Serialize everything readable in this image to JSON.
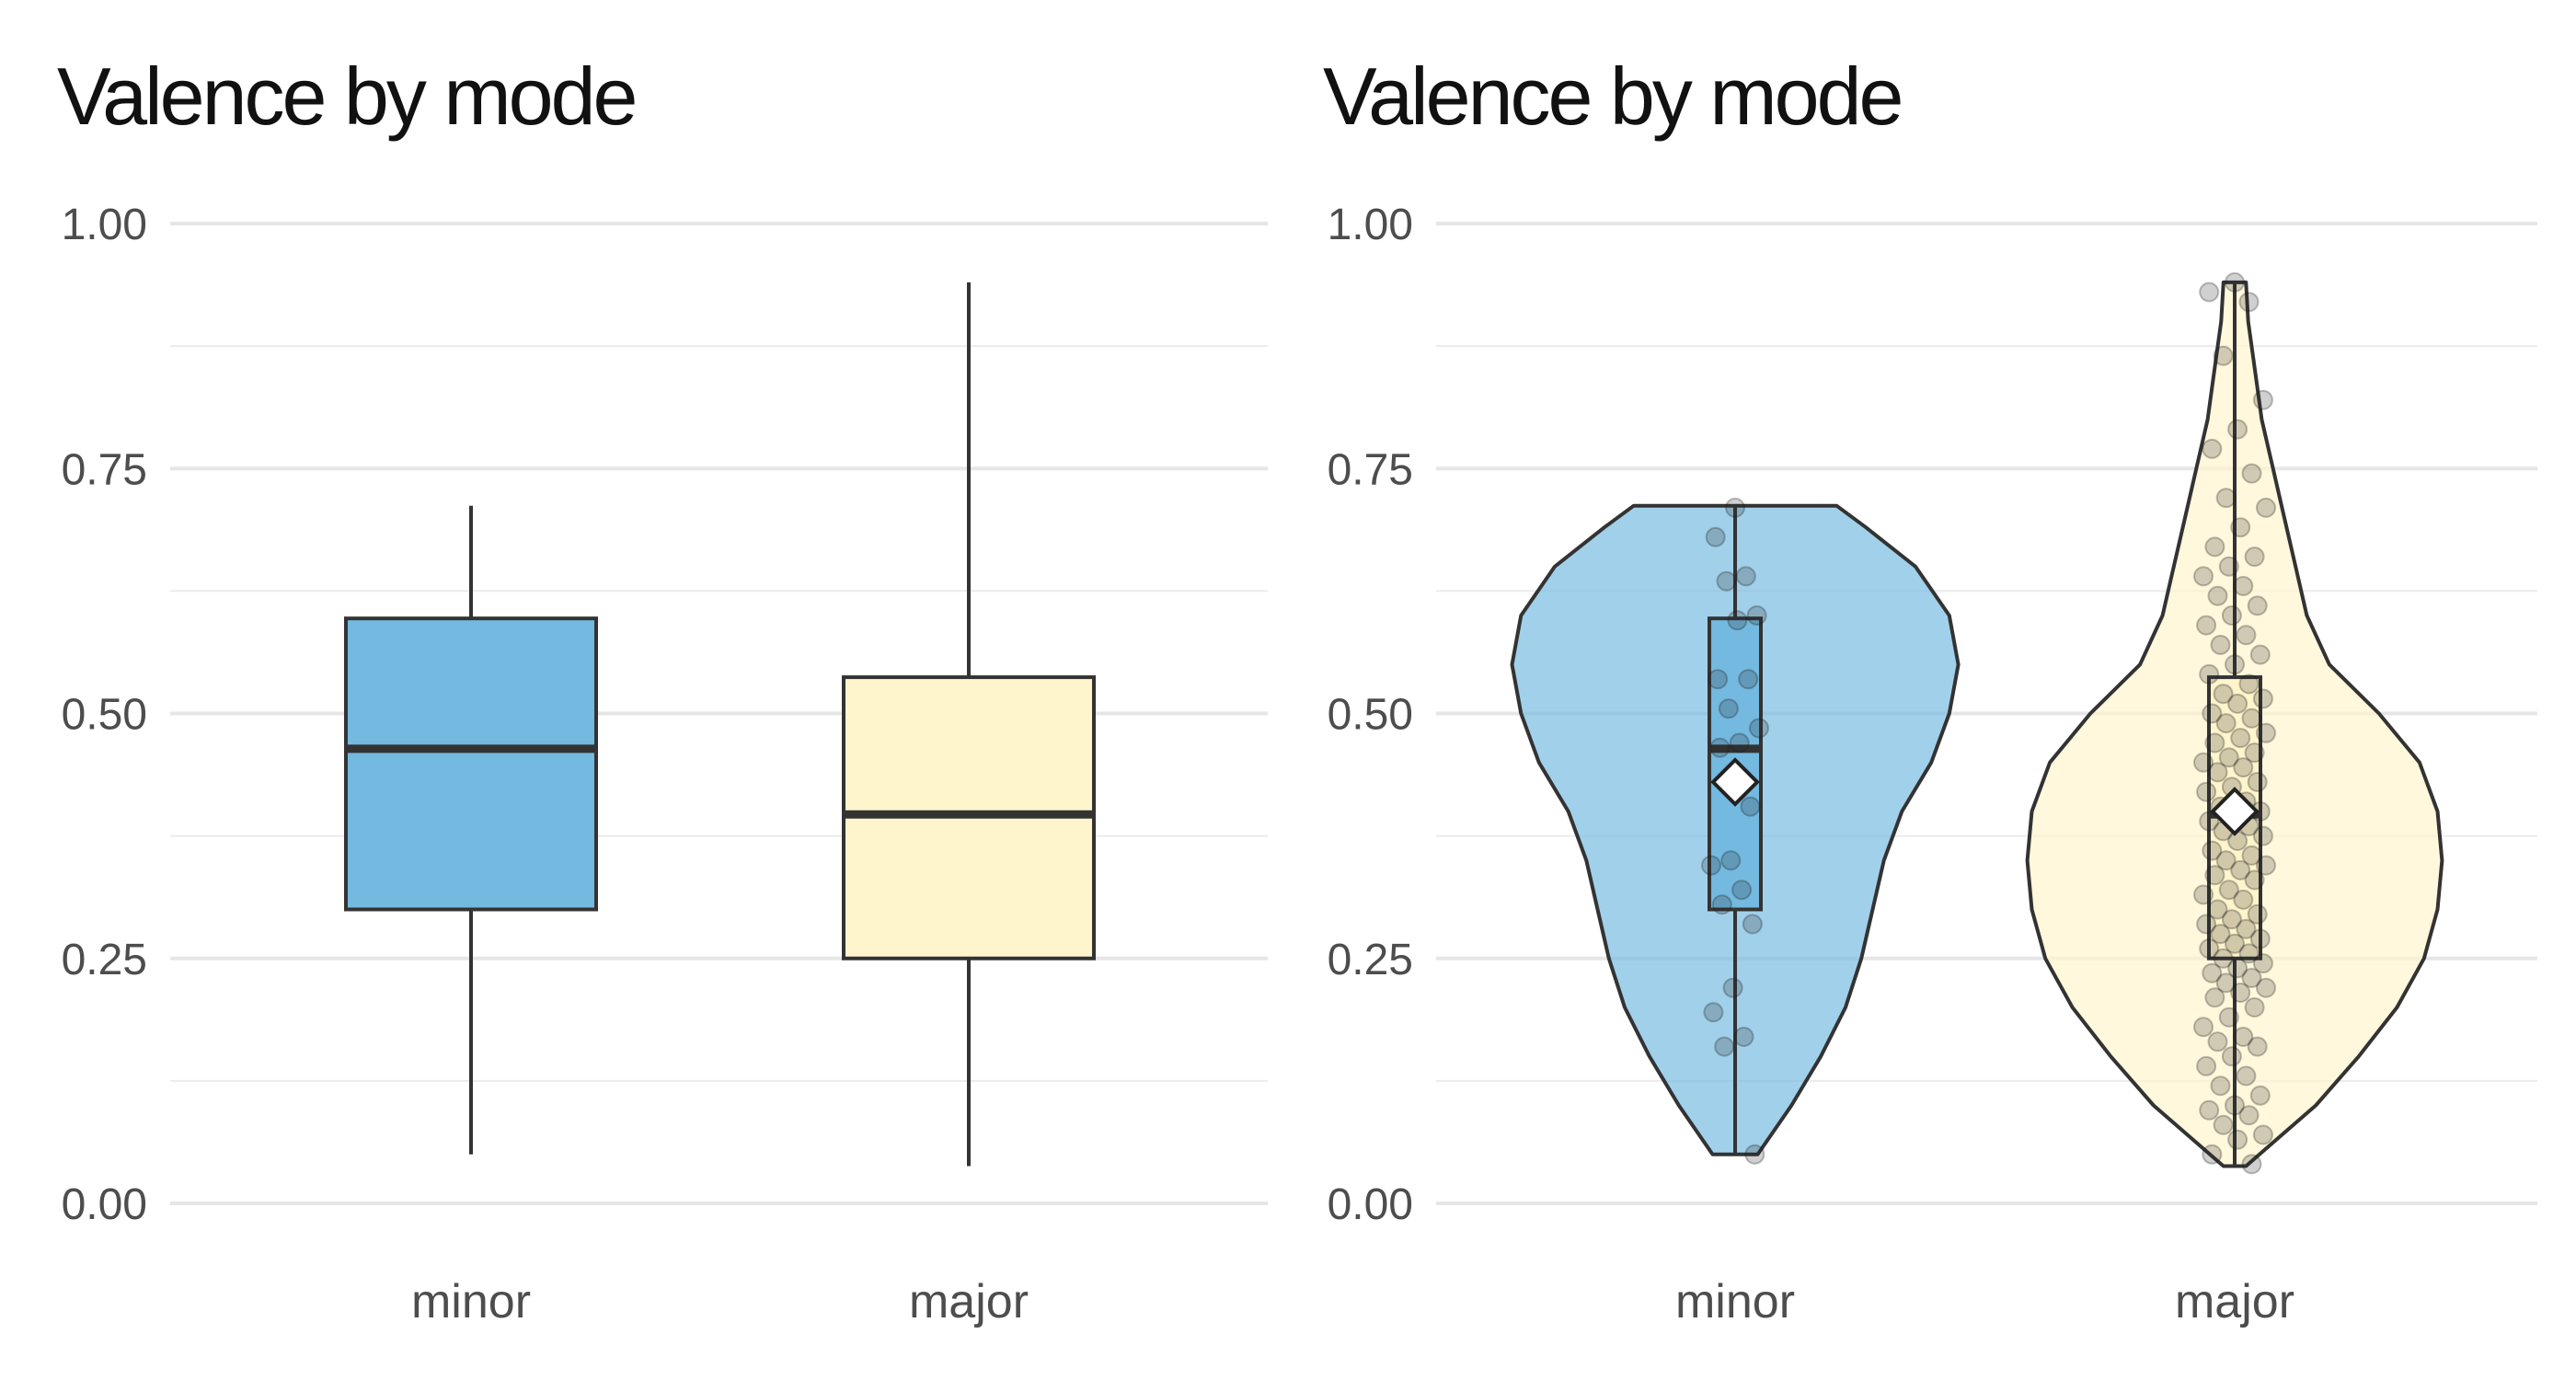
{
  "chart_data": [
    {
      "type": "box",
      "title": "Valence by mode",
      "xlabel": "",
      "ylabel": "",
      "ylim": [
        0,
        1
      ],
      "yticks": [
        "0.00",
        "0.25",
        "0.50",
        "0.75",
        "1.00"
      ],
      "grid": true,
      "categories": [
        "minor",
        "major"
      ],
      "colors": [
        "#74B9E0",
        "#FFF5CC"
      ],
      "boxes": [
        {
          "category": "minor",
          "whisker_low": 0.05,
          "q1": 0.3,
          "median": 0.464,
          "q3": 0.597,
          "whisker_high": 0.712
        },
        {
          "category": "major",
          "whisker_low": 0.038,
          "q1": 0.25,
          "median": 0.397,
          "q3": 0.537,
          "whisker_high": 0.94
        }
      ]
    },
    {
      "type": "violin",
      "title": "Valence by mode",
      "xlabel": "",
      "ylabel": "",
      "ylim": [
        0,
        1
      ],
      "yticks": [
        "0.00",
        "0.25",
        "0.50",
        "0.75",
        "1.00"
      ],
      "grid": true,
      "categories": [
        "minor",
        "major"
      ],
      "colors": [
        "#74B9E0",
        "#FFF5CC"
      ],
      "boxes": [
        {
          "category": "minor",
          "whisker_low": 0.05,
          "q1": 0.3,
          "median": 0.464,
          "q3": 0.597,
          "whisker_high": 0.712,
          "mean": 0.43
        },
        {
          "category": "major",
          "whisker_low": 0.038,
          "q1": 0.25,
          "median": 0.397,
          "q3": 0.537,
          "whisker_high": 0.94,
          "mean": 0.4
        }
      ],
      "violins": [
        {
          "category": "minor",
          "profile": [
            [
              0.05,
              0.1
            ],
            [
              0.1,
              0.25
            ],
            [
              0.15,
              0.38
            ],
            [
              0.2,
              0.49
            ],
            [
              0.25,
              0.56
            ],
            [
              0.3,
              0.61
            ],
            [
              0.35,
              0.66
            ],
            [
              0.4,
              0.74
            ],
            [
              0.45,
              0.87
            ],
            [
              0.5,
              0.95
            ],
            [
              0.55,
              0.99
            ],
            [
              0.6,
              0.95
            ],
            [
              0.65,
              0.8
            ],
            [
              0.69,
              0.58
            ],
            [
              0.712,
              0.45
            ]
          ]
        },
        {
          "category": "major",
          "profile": [
            [
              0.038,
              0.05
            ],
            [
              0.05,
              0.11
            ],
            [
              0.1,
              0.36
            ],
            [
              0.15,
              0.55
            ],
            [
              0.2,
              0.72
            ],
            [
              0.25,
              0.84
            ],
            [
              0.3,
              0.9
            ],
            [
              0.35,
              0.92
            ],
            [
              0.4,
              0.9
            ],
            [
              0.45,
              0.82
            ],
            [
              0.5,
              0.64
            ],
            [
              0.55,
              0.42
            ],
            [
              0.6,
              0.32
            ],
            [
              0.65,
              0.27
            ],
            [
              0.7,
              0.22
            ],
            [
              0.75,
              0.17
            ],
            [
              0.8,
              0.12
            ],
            [
              0.85,
              0.09
            ],
            [
              0.9,
              0.06
            ],
            [
              0.94,
              0.05
            ]
          ]
        }
      ],
      "points": [
        {
          "category": "minor",
          "values": [
            0.71,
            0.68,
            0.64,
            0.635,
            0.6,
            0.595,
            0.535,
            0.535,
            0.505,
            0.485,
            0.47,
            0.465,
            0.405,
            0.35,
            0.345,
            0.32,
            0.305,
            0.285,
            0.22,
            0.195,
            0.17,
            0.16,
            0.05
          ]
        },
        {
          "category": "major",
          "values": [
            0.94,
            0.93,
            0.92,
            0.865,
            0.82,
            0.79,
            0.77,
            0.745,
            0.72,
            0.71,
            0.69,
            0.67,
            0.66,
            0.65,
            0.64,
            0.63,
            0.62,
            0.61,
            0.6,
            0.59,
            0.58,
            0.57,
            0.56,
            0.55,
            0.54,
            0.53,
            0.52,
            0.515,
            0.51,
            0.5,
            0.495,
            0.49,
            0.48,
            0.475,
            0.47,
            0.46,
            0.455,
            0.45,
            0.445,
            0.44,
            0.43,
            0.425,
            0.42,
            0.41,
            0.405,
            0.4,
            0.395,
            0.39,
            0.385,
            0.38,
            0.375,
            0.37,
            0.36,
            0.355,
            0.35,
            0.345,
            0.34,
            0.335,
            0.33,
            0.32,
            0.315,
            0.31,
            0.3,
            0.295,
            0.29,
            0.285,
            0.28,
            0.275,
            0.27,
            0.265,
            0.26,
            0.255,
            0.25,
            0.245,
            0.24,
            0.235,
            0.23,
            0.225,
            0.22,
            0.215,
            0.21,
            0.2,
            0.19,
            0.18,
            0.17,
            0.165,
            0.16,
            0.15,
            0.14,
            0.13,
            0.12,
            0.11,
            0.1,
            0.095,
            0.09,
            0.08,
            0.07,
            0.065,
            0.05,
            0.04
          ]
        }
      ]
    }
  ]
}
